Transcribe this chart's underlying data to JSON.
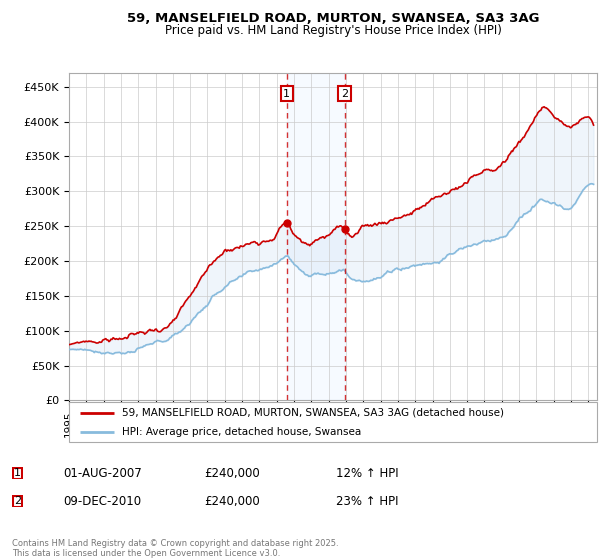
{
  "title_line1": "59, MANSELFIELD ROAD, MURTON, SWANSEA, SA3 3AG",
  "title_line2": "Price paid vs. HM Land Registry's House Price Index (HPI)",
  "ylabel_ticks": [
    "£0",
    "£50K",
    "£100K",
    "£150K",
    "£200K",
    "£250K",
    "£300K",
    "£350K",
    "£400K",
    "£450K"
  ],
  "ylabel_values": [
    0,
    50000,
    100000,
    150000,
    200000,
    250000,
    300000,
    350000,
    400000,
    450000
  ],
  "ylim": [
    0,
    470000
  ],
  "xlim_start": 1995.0,
  "xlim_end": 2025.5,
  "red_line_color": "#cc0000",
  "blue_line_color": "#88bbdd",
  "transaction1_date": 2007.58,
  "transaction2_date": 2010.92,
  "transaction1_price": 240000,
  "transaction2_price": 240000,
  "transaction1_hpi": "12% ↑ HPI",
  "transaction2_hpi": "23% ↑ HPI",
  "transaction1_datestr": "01-AUG-2007",
  "transaction2_datestr": "09-DEC-2010",
  "legend_label_red": "59, MANSELFIELD ROAD, MURTON, SWANSEA, SA3 3AG (detached house)",
  "legend_label_blue": "HPI: Average price, detached house, Swansea",
  "footer_text": "Contains HM Land Registry data © Crown copyright and database right 2025.\nThis data is licensed under the Open Government Licence v3.0.",
  "background_color": "#ffffff",
  "grid_color": "#cccccc"
}
